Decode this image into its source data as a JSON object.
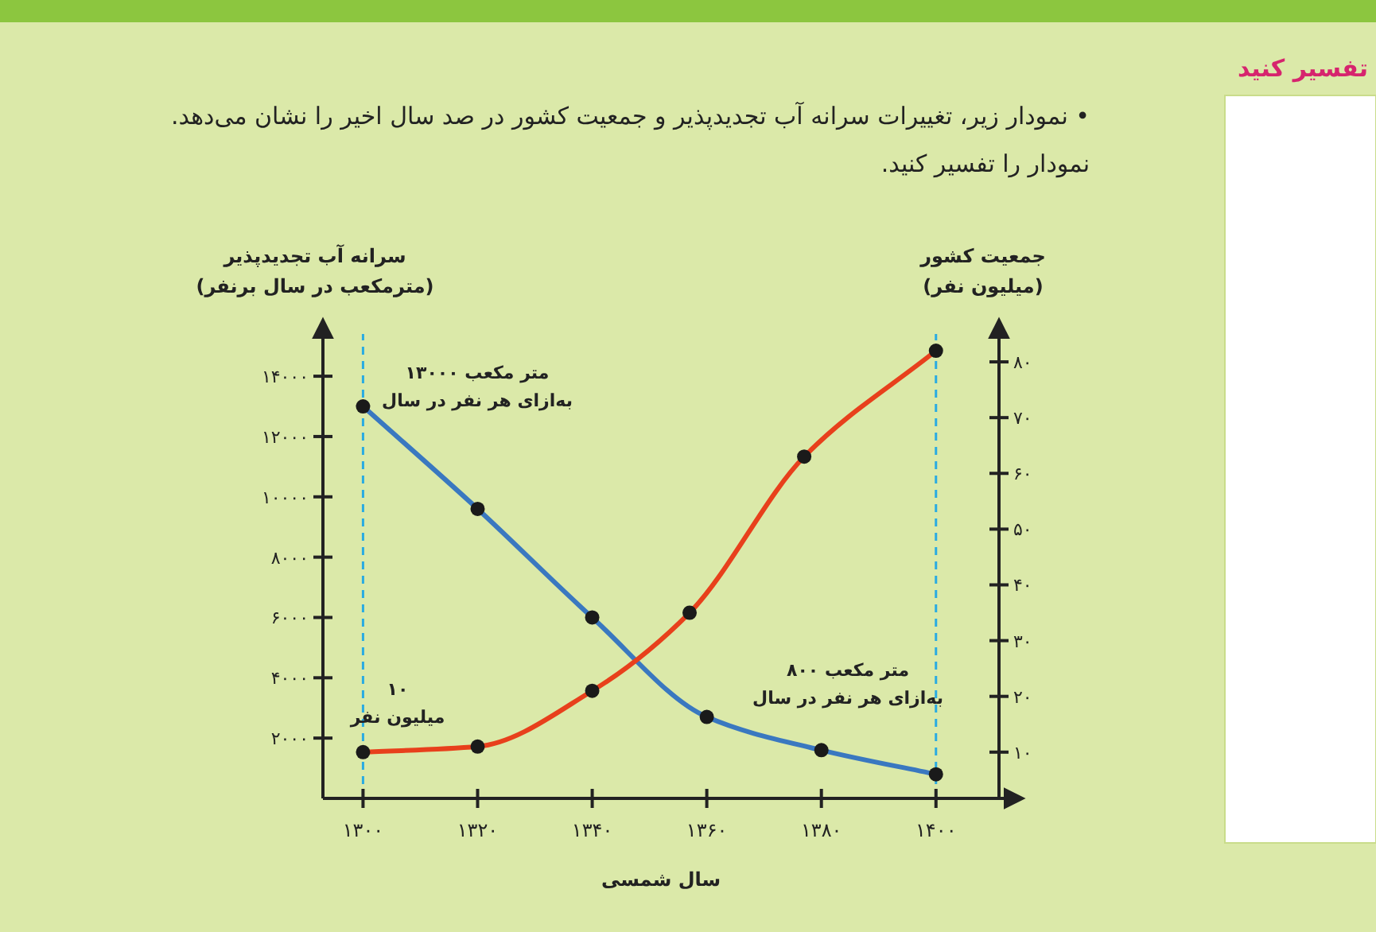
{
  "chart_data": {
    "type": "line",
    "title": "• نمودار زیر، تغییرات سرانه آب تجدیدپذیر و جمعیت کشور در صد سال اخیر را نشان می‌دهد. نمودار را تفسیر کنید.",
    "xlabel": "سال شمسی",
    "ylabel": "سرانه آب تجدیدپذیر\n(مترمکعب در سال برنفر)",
    "y2label": "جمعیت کشور\n(میلیون نفر)",
    "x": [
      1300,
      1320,
      1340,
      1360,
      1380,
      1400
    ],
    "xlim": [
      1293,
      1411
    ],
    "xticks": [
      {
        "value": 1300,
        "label": "۱۳۰۰"
      },
      {
        "value": 1320,
        "label": "۱۳۲۰"
      },
      {
        "value": 1340,
        "label": "۱۳۴۰"
      },
      {
        "value": 1360,
        "label": "۱۳۶۰"
      },
      {
        "value": 1380,
        "label": "۱۳۸۰"
      },
      {
        "value": 1400,
        "label": "۱۴۰۰"
      }
    ],
    "ylim": [
      0,
      15400
    ],
    "yticks": [
      {
        "value": 2000,
        "label": "۲۰۰۰"
      },
      {
        "value": 4000,
        "label": "۴۰۰۰"
      },
      {
        "value": 6000,
        "label": "۶۰۰۰"
      },
      {
        "value": 8000,
        "label": "۸۰۰۰"
      },
      {
        "value": 10000,
        "label": "۱۰۰۰۰"
      },
      {
        "value": 12000,
        "label": "۱۲۰۰۰"
      },
      {
        "value": 14000,
        "label": "۱۴۰۰۰"
      }
    ],
    "y2lim": [
      1.7,
      85
    ],
    "y2ticks": [
      {
        "value": 10,
        "label": "۱۰"
      },
      {
        "value": 20,
        "label": "۲۰"
      },
      {
        "value": 30,
        "label": "۳۰"
      },
      {
        "value": 40,
        "label": "۴۰"
      },
      {
        "value": 50,
        "label": "۵۰"
      },
      {
        "value": 60,
        "label": "۶۰"
      },
      {
        "value": 70,
        "label": "۷۰"
      },
      {
        "value": 80,
        "label": "۸۰"
      }
    ],
    "series": [
      {
        "color": "#3a78c0",
        "values": [
          13000,
          9600,
          6000,
          2700,
          1600,
          800
        ]
      },
      {
        "color": "#e8401c",
        "axis": "y2",
        "x": [
          1300,
          1320,
          1340,
          1357,
          1377,
          1400
        ],
        "values": [
          10,
          11,
          21,
          35,
          63,
          82
        ]
      }
    ],
    "marker": "circle",
    "line_style": "solid",
    "grid": false,
    "ref_lines": [
      {
        "axis": "x",
        "value": 1300,
        "color": "#29abe2",
        "line_style": "dashed"
      },
      {
        "axis": "x",
        "value": 1400,
        "color": "#29abe2",
        "line_style": "dashed"
      }
    ],
    "annotations": [
      "۱۳۰۰۰ متر مکعب\nبه‌ازای هر نفر در سال",
      "۱۰\nمیلیون نفر",
      "۸۰۰ متر مکعب\nبه‌ازای هر نفر در سال",
      "تفسیر کنید"
    ]
  }
}
